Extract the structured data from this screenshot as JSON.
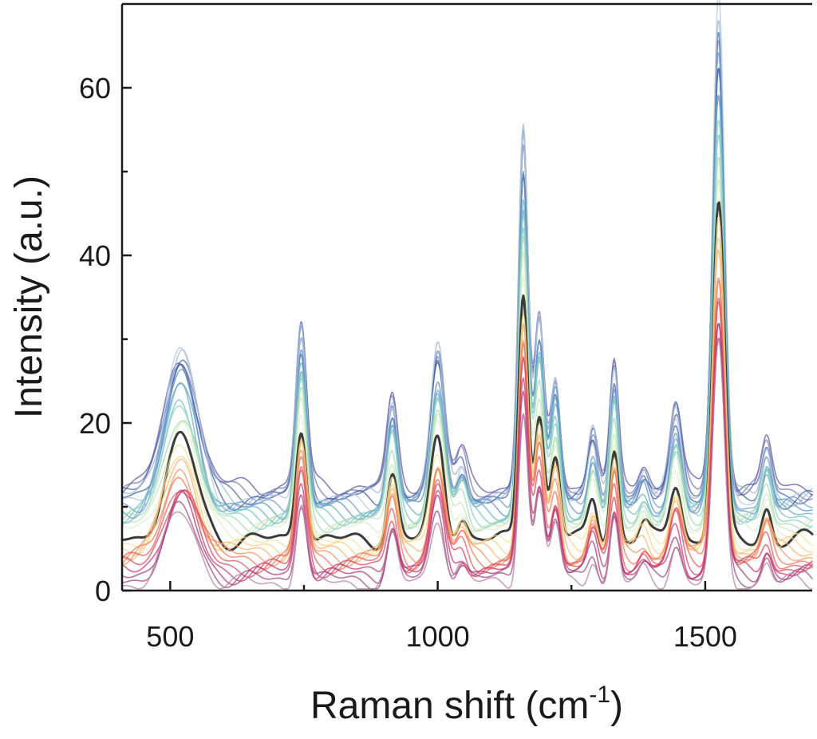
{
  "chart_data": {
    "type": "line",
    "title": "",
    "xlabel": "Raman shift (cm",
    "xlabel_sup": "-1",
    "xlabel_tail": ")",
    "ylabel": "Intensity (a.u.)",
    "xlim": [
      410,
      1700
    ],
    "ylim": [
      0,
      70
    ],
    "x_ticks": [
      500,
      1000,
      1500
    ],
    "x_tick_labels": [
      "500",
      "1000",
      "1500"
    ],
    "y_ticks": [
      0,
      20,
      40,
      60
    ],
    "y_tick_labels": [
      "0",
      "20",
      "40",
      "60"
    ],
    "grid": false,
    "legend": "none",
    "peaks": [
      {
        "x": 520,
        "height": 12,
        "width": 30
      },
      {
        "x": 745,
        "height": 14,
        "width": 10
      },
      {
        "x": 915,
        "height": 8,
        "width": 10
      },
      {
        "x": 1000,
        "height": 12,
        "width": 13
      },
      {
        "x": 1045,
        "height": 3,
        "width": 10
      },
      {
        "x": 1160,
        "height": 30,
        "width": 9
      },
      {
        "x": 1190,
        "height": 15,
        "width": 9
      },
      {
        "x": 1220,
        "height": 10,
        "width": 9
      },
      {
        "x": 1290,
        "height": 5,
        "width": 9
      },
      {
        "x": 1330,
        "height": 11,
        "width": 8
      },
      {
        "x": 1385,
        "height": 2,
        "width": 9
      },
      {
        "x": 1445,
        "height": 7,
        "width": 11
      },
      {
        "x": 1525,
        "height": 40,
        "width": 11
      },
      {
        "x": 1615,
        "height": 4,
        "width": 9
      }
    ],
    "series": [
      {
        "baseline": 12.5,
        "scale": 1.25,
        "color": "#5b5aa6"
      },
      {
        "baseline": 12.0,
        "scale": 1.35,
        "color": "#7d7ab8"
      },
      {
        "baseline": 11.5,
        "scale": 1.4,
        "color": "#4a64a8"
      },
      {
        "baseline": 11.2,
        "scale": 1.45,
        "color": "#9fb5d6"
      },
      {
        "baseline": 10.8,
        "scale": 1.3,
        "color": "#3d5fa0"
      },
      {
        "baseline": 10.5,
        "scale": 1.5,
        "color": "#b4c8e0"
      },
      {
        "baseline": 10.0,
        "scale": 1.2,
        "color": "#6f9ccf"
      },
      {
        "baseline": 9.7,
        "scale": 1.35,
        "color": "#5f93c5"
      },
      {
        "baseline": 9.3,
        "scale": 1.25,
        "color": "#63b1c6"
      },
      {
        "baseline": 9.0,
        "scale": 1.15,
        "color": "#76c3c3"
      },
      {
        "baseline": 8.6,
        "scale": 1.2,
        "color": "#8bd0bd"
      },
      {
        "baseline": 8.2,
        "scale": 1.1,
        "color": "#a3dab6"
      },
      {
        "baseline": 7.8,
        "scale": 1.05,
        "color": "#c3e6bc"
      },
      {
        "baseline": 7.3,
        "scale": 1.0,
        "color": "#dcefc6"
      },
      {
        "baseline": 6.0,
        "scale": 1.0,
        "color": "#3b3b3b"
      },
      {
        "baseline": 5.5,
        "scale": 0.95,
        "color": "#f6e39a"
      },
      {
        "baseline": 5.1,
        "scale": 0.9,
        "color": "#fbcf82"
      },
      {
        "baseline": 4.7,
        "scale": 0.9,
        "color": "#fbb36f"
      },
      {
        "baseline": 4.2,
        "scale": 0.85,
        "color": "#f7935f"
      },
      {
        "baseline": 3.8,
        "scale": 0.85,
        "color": "#f17658"
      },
      {
        "baseline": 3.3,
        "scale": 0.8,
        "color": "#e85a58"
      },
      {
        "baseline": 2.8,
        "scale": 0.8,
        "color": "#db4560"
      },
      {
        "baseline": 2.3,
        "scale": 0.75,
        "color": "#c83867"
      },
      {
        "baseline": 1.8,
        "scale": 0.75,
        "color": "#b53470"
      },
      {
        "baseline": 1.3,
        "scale": 0.7,
        "color": "#a0477f"
      },
      {
        "baseline": 0.8,
        "scale": 0.7,
        "color": "#b87fa6"
      }
    ]
  }
}
